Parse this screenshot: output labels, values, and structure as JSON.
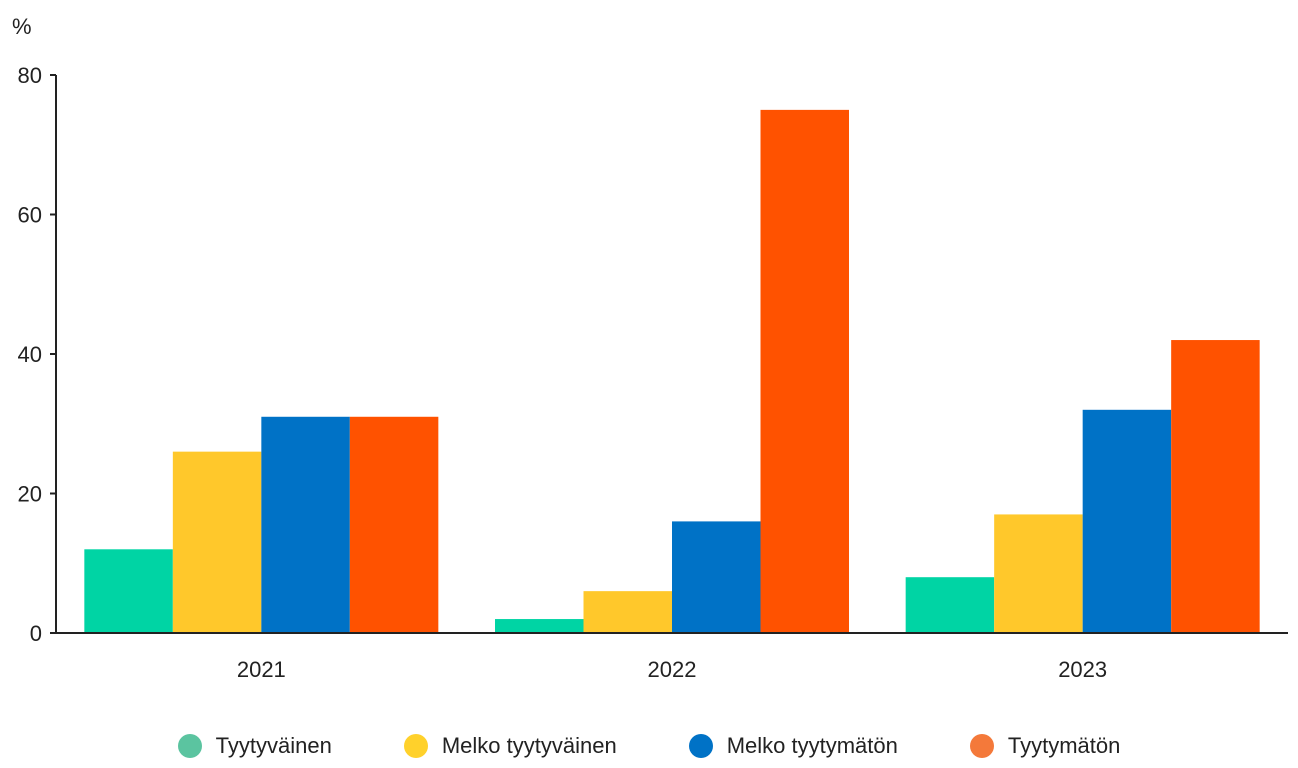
{
  "chart_data": {
    "type": "bar",
    "ylabel": "%",
    "ylim": [
      0,
      80
    ],
    "yticks": [
      0,
      20,
      40,
      60,
      80
    ],
    "categories": [
      "2021",
      "2022",
      "2023"
    ],
    "series": [
      {
        "name": "Tyytyväinen",
        "color": "#00d4a4",
        "legend_color": "#5bc4a0",
        "values": [
          12,
          2,
          8
        ]
      },
      {
        "name": "Melko tyytyväinen",
        "color": "#ffc82b",
        "legend_color": "#ffd12b",
        "values": [
          26,
          6,
          17
        ]
      },
      {
        "name": "Melko tyytymätön",
        "color": "#0072c6",
        "legend_color": "#0072c6",
        "values": [
          31,
          16,
          32
        ]
      },
      {
        "name": "Tyytymätön",
        "color": "#ff5200",
        "legend_color": "#f4793a",
        "values": [
          31,
          75,
          42
        ]
      }
    ],
    "grid": false,
    "legend_position": "bottom"
  }
}
